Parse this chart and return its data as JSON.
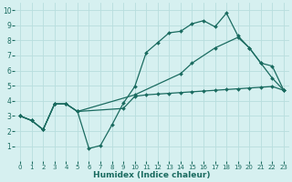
{
  "xlabel": "Humidex (Indice chaleur)",
  "bg_color": "#d6f0f0",
  "grid_color": "#b8dede",
  "line_color": "#1a6b60",
  "xlim": [
    -0.5,
    23.5
  ],
  "ylim": [
    0,
    10.5
  ],
  "xticks": [
    0,
    1,
    2,
    3,
    4,
    5,
    6,
    7,
    8,
    9,
    10,
    11,
    12,
    13,
    14,
    15,
    16,
    17,
    18,
    19,
    20,
    21,
    22,
    23
  ],
  "yticks": [
    1,
    2,
    3,
    4,
    5,
    6,
    7,
    8,
    9,
    10
  ],
  "line1_x": [
    0,
    1,
    2,
    3,
    4,
    5,
    6,
    7,
    8,
    9,
    10,
    11,
    12,
    13,
    14,
    15,
    16,
    17,
    18,
    19,
    20,
    21,
    22,
    23
  ],
  "line1_y": [
    3.0,
    2.7,
    2.1,
    3.8,
    3.8,
    3.3,
    0.85,
    1.05,
    2.4,
    3.85,
    4.95,
    7.2,
    7.85,
    8.5,
    8.6,
    9.1,
    9.3,
    8.9,
    9.8,
    8.3,
    7.5,
    6.5,
    5.5,
    4.7
  ],
  "line2_x": [
    0,
    1,
    2,
    3,
    4,
    5,
    9,
    10,
    11,
    12,
    13,
    14,
    15,
    16,
    17,
    18,
    19,
    20,
    21,
    22,
    23
  ],
  "line2_y": [
    3.0,
    2.7,
    2.1,
    3.8,
    3.8,
    3.3,
    3.5,
    4.3,
    4.4,
    4.45,
    4.5,
    4.55,
    4.6,
    4.65,
    4.7,
    4.75,
    4.8,
    4.85,
    4.9,
    4.95,
    4.7
  ],
  "line3_x": [
    0,
    1,
    2,
    3,
    4,
    5,
    10,
    14,
    15,
    17,
    19,
    20,
    21,
    22,
    23
  ],
  "line3_y": [
    3.0,
    2.7,
    2.1,
    3.8,
    3.8,
    3.3,
    4.4,
    5.8,
    6.5,
    7.5,
    8.2,
    7.5,
    6.5,
    6.3,
    4.7
  ]
}
